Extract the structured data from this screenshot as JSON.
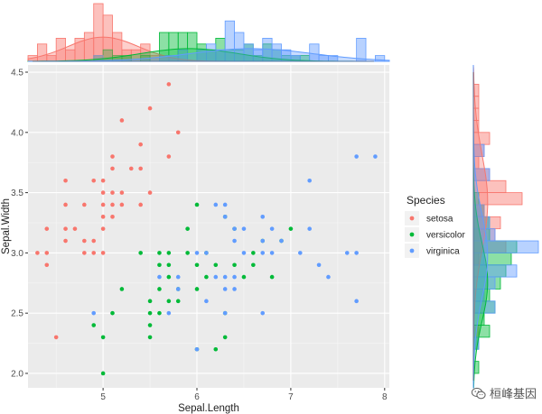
{
  "chart_data": {
    "type": "scatter",
    "xlabel": "Sepal.Length",
    "ylabel": "Sepal.Width",
    "xlim": [
      4.2,
      8.05
    ],
    "ylim": [
      1.88,
      4.56
    ],
    "xticks": [
      5,
      6,
      7,
      8
    ],
    "yticks": [
      2.0,
      2.5,
      3.0,
      3.5,
      4.0,
      4.5
    ],
    "xtick_labels": [
      "5",
      "6",
      "7",
      "8"
    ],
    "ytick_labels": [
      "2.0",
      "2.5",
      "3.0",
      "3.5",
      "4.0",
      "4.5"
    ],
    "grid": true,
    "legend_position": "right",
    "legend_title": "Species",
    "series": [
      {
        "name": "setosa",
        "color": "#F8766D",
        "points": [
          [
            4.3,
            3.0
          ],
          [
            4.4,
            2.9
          ],
          [
            4.4,
            3.0
          ],
          [
            4.4,
            3.2
          ],
          [
            4.5,
            2.3
          ],
          [
            4.6,
            3.1
          ],
          [
            4.6,
            3.4
          ],
          [
            4.6,
            3.6
          ],
          [
            4.6,
            3.2
          ],
          [
            4.7,
            3.2
          ],
          [
            4.8,
            3.0
          ],
          [
            4.8,
            3.4
          ],
          [
            4.8,
            3.1
          ],
          [
            4.9,
            3.0
          ],
          [
            4.9,
            3.1
          ],
          [
            4.9,
            3.6
          ],
          [
            5.0,
            3.0
          ],
          [
            5.0,
            3.2
          ],
          [
            5.0,
            3.3
          ],
          [
            5.0,
            3.4
          ],
          [
            5.0,
            3.5
          ],
          [
            5.0,
            3.6
          ],
          [
            5.1,
            3.3
          ],
          [
            5.1,
            3.4
          ],
          [
            5.1,
            3.5
          ],
          [
            5.1,
            3.7
          ],
          [
            5.1,
            3.8
          ],
          [
            5.2,
            3.4
          ],
          [
            5.2,
            3.5
          ],
          [
            5.2,
            4.1
          ],
          [
            5.3,
            3.7
          ],
          [
            5.4,
            3.4
          ],
          [
            5.4,
            3.7
          ],
          [
            5.4,
            3.9
          ],
          [
            5.5,
            3.5
          ],
          [
            5.5,
            4.2
          ],
          [
            5.7,
            3.8
          ],
          [
            5.7,
            4.4
          ],
          [
            5.8,
            4.0
          ]
        ]
      },
      {
        "name": "versicolor",
        "color": "#00BA38",
        "points": [
          [
            4.9,
            2.4
          ],
          [
            5.0,
            2.0
          ],
          [
            5.0,
            2.3
          ],
          [
            5.1,
            2.5
          ],
          [
            5.2,
            2.7
          ],
          [
            5.4,
            3.0
          ],
          [
            5.5,
            2.3
          ],
          [
            5.5,
            2.4
          ],
          [
            5.5,
            2.5
          ],
          [
            5.5,
            2.6
          ],
          [
            5.6,
            2.5
          ],
          [
            5.6,
            2.7
          ],
          [
            5.6,
            2.9
          ],
          [
            5.6,
            3.0
          ],
          [
            5.7,
            2.6
          ],
          [
            5.7,
            2.8
          ],
          [
            5.7,
            2.9
          ],
          [
            5.7,
            3.0
          ],
          [
            5.8,
            2.6
          ],
          [
            5.8,
            2.7
          ],
          [
            5.9,
            3.0
          ],
          [
            5.9,
            3.2
          ],
          [
            6.0,
            2.2
          ],
          [
            6.0,
            2.7
          ],
          [
            6.0,
            2.9
          ],
          [
            6.0,
            3.4
          ],
          [
            6.1,
            2.8
          ],
          [
            6.1,
            3.0
          ],
          [
            6.2,
            2.2
          ],
          [
            6.2,
            2.9
          ],
          [
            6.3,
            2.3
          ],
          [
            6.3,
            2.5
          ],
          [
            6.3,
            3.3
          ],
          [
            6.4,
            2.9
          ],
          [
            6.4,
            3.2
          ],
          [
            6.5,
            2.8
          ],
          [
            6.6,
            2.9
          ],
          [
            6.6,
            3.0
          ],
          [
            6.7,
            3.1
          ],
          [
            6.8,
            2.8
          ],
          [
            6.9,
            3.1
          ],
          [
            7.0,
            3.2
          ]
        ]
      },
      {
        "name": "virginica",
        "color": "#619CFF",
        "points": [
          [
            4.9,
            2.5
          ],
          [
            5.6,
            2.8
          ],
          [
            5.7,
            2.5
          ],
          [
            5.8,
            2.7
          ],
          [
            5.8,
            2.8
          ],
          [
            6.0,
            2.2
          ],
          [
            6.0,
            3.0
          ],
          [
            6.1,
            2.6
          ],
          [
            6.1,
            3.0
          ],
          [
            6.2,
            2.8
          ],
          [
            6.2,
            3.4
          ],
          [
            6.3,
            2.5
          ],
          [
            6.3,
            2.7
          ],
          [
            6.3,
            2.8
          ],
          [
            6.3,
            3.3
          ],
          [
            6.3,
            3.4
          ],
          [
            6.4,
            2.7
          ],
          [
            6.4,
            2.8
          ],
          [
            6.4,
            3.1
          ],
          [
            6.4,
            3.2
          ],
          [
            6.5,
            3.0
          ],
          [
            6.5,
            3.2
          ],
          [
            6.7,
            2.5
          ],
          [
            6.7,
            3.0
          ],
          [
            6.7,
            3.1
          ],
          [
            6.7,
            3.3
          ],
          [
            6.8,
            3.0
          ],
          [
            6.8,
            3.2
          ],
          [
            6.9,
            3.1
          ],
          [
            7.1,
            3.0
          ],
          [
            7.2,
            3.2
          ],
          [
            7.2,
            3.6
          ],
          [
            7.3,
            2.9
          ],
          [
            7.4,
            2.8
          ],
          [
            7.6,
            3.0
          ],
          [
            7.7,
            2.6
          ],
          [
            7.7,
            3.0
          ],
          [
            7.7,
            3.8
          ],
          [
            7.9,
            3.8
          ]
        ]
      }
    ]
  },
  "top_histogram": {
    "bin_start": 4.2,
    "bin_width": 0.1,
    "setosa": [
      1,
      3,
      1,
      4,
      2,
      4,
      5,
      10,
      8,
      5,
      2,
      2,
      3,
      1,
      0,
      0,
      0,
      0,
      0,
      0,
      0,
      0,
      0,
      0,
      0,
      0,
      0,
      0,
      0,
      0,
      0,
      0,
      0,
      0,
      0,
      0,
      0,
      0
    ],
    "versicolor": [
      0,
      0,
      0,
      0,
      0,
      0,
      0,
      1,
      2,
      1,
      1,
      0,
      1,
      0,
      5,
      5,
      5,
      5,
      3,
      2,
      4,
      2,
      2,
      3,
      1,
      3,
      2,
      1,
      1,
      1,
      0,
      0,
      0,
      0,
      0,
      0,
      0,
      0
    ],
    "virginica": [
      0,
      0,
      0,
      0,
      0,
      0,
      0,
      1,
      0,
      0,
      0,
      0,
      0,
      0,
      1,
      1,
      2,
      0,
      2,
      3,
      2,
      7,
      5,
      3,
      2,
      4,
      3,
      2,
      1,
      0,
      3,
      1,
      1,
      0,
      0,
      4,
      0,
      1
    ]
  },
  "right_histogram": {
    "bin_start": 2.0,
    "bin_width": 0.1,
    "setosa": [
      0,
      0,
      0,
      1,
      0,
      0,
      0,
      0,
      0,
      1,
      6,
      4,
      5,
      2,
      9,
      6,
      3,
      1,
      2,
      3,
      1,
      1,
      1,
      1,
      0
    ],
    "versicolor": [
      1,
      0,
      1,
      3,
      2,
      4,
      3,
      5,
      6,
      7,
      8,
      3,
      3,
      2,
      1,
      0,
      0,
      0,
      0,
      0,
      0,
      0,
      0,
      0,
      0
    ],
    "virginica": [
      0,
      0,
      1,
      0,
      0,
      4,
      2,
      4,
      8,
      2,
      12,
      4,
      3,
      2,
      0,
      0,
      3,
      0,
      2,
      0,
      0,
      0,
      0,
      0,
      0
    ]
  },
  "watermark": {
    "text": "桓峰基因",
    "icon": "wechat-icon"
  }
}
